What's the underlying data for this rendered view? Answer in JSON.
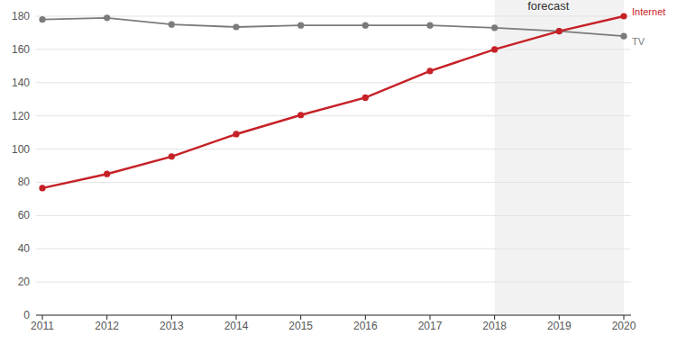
{
  "chart_data": {
    "type": "line",
    "x": [
      2011,
      2012,
      2013,
      2014,
      2015,
      2016,
      2017,
      2018,
      2019,
      2020
    ],
    "series": [
      {
        "name": "Internet",
        "color": "#c62127",
        "marker": "circle",
        "values": [
          76.5,
          85,
          95.5,
          109,
          120.5,
          131,
          147,
          160,
          171,
          180
        ]
      },
      {
        "name": "TV",
        "color": "#7b7b7b",
        "marker": "circle",
        "values": [
          178,
          179,
          175,
          173.5,
          174.5,
          174.5,
          174.5,
          173,
          171,
          168
        ]
      }
    ],
    "xlim": [
      2011,
      2020
    ],
    "xticks": [
      2011,
      2012,
      2013,
      2014,
      2015,
      2016,
      2017,
      2018,
      2019,
      2020
    ],
    "ylim": [
      0,
      180
    ],
    "yticks": [
      0,
      20,
      40,
      60,
      80,
      100,
      120,
      140,
      160,
      180
    ],
    "grid": true,
    "annotations": [
      {
        "text": "forecast",
        "x_start": 2018,
        "x_end": 2020
      }
    ]
  }
}
